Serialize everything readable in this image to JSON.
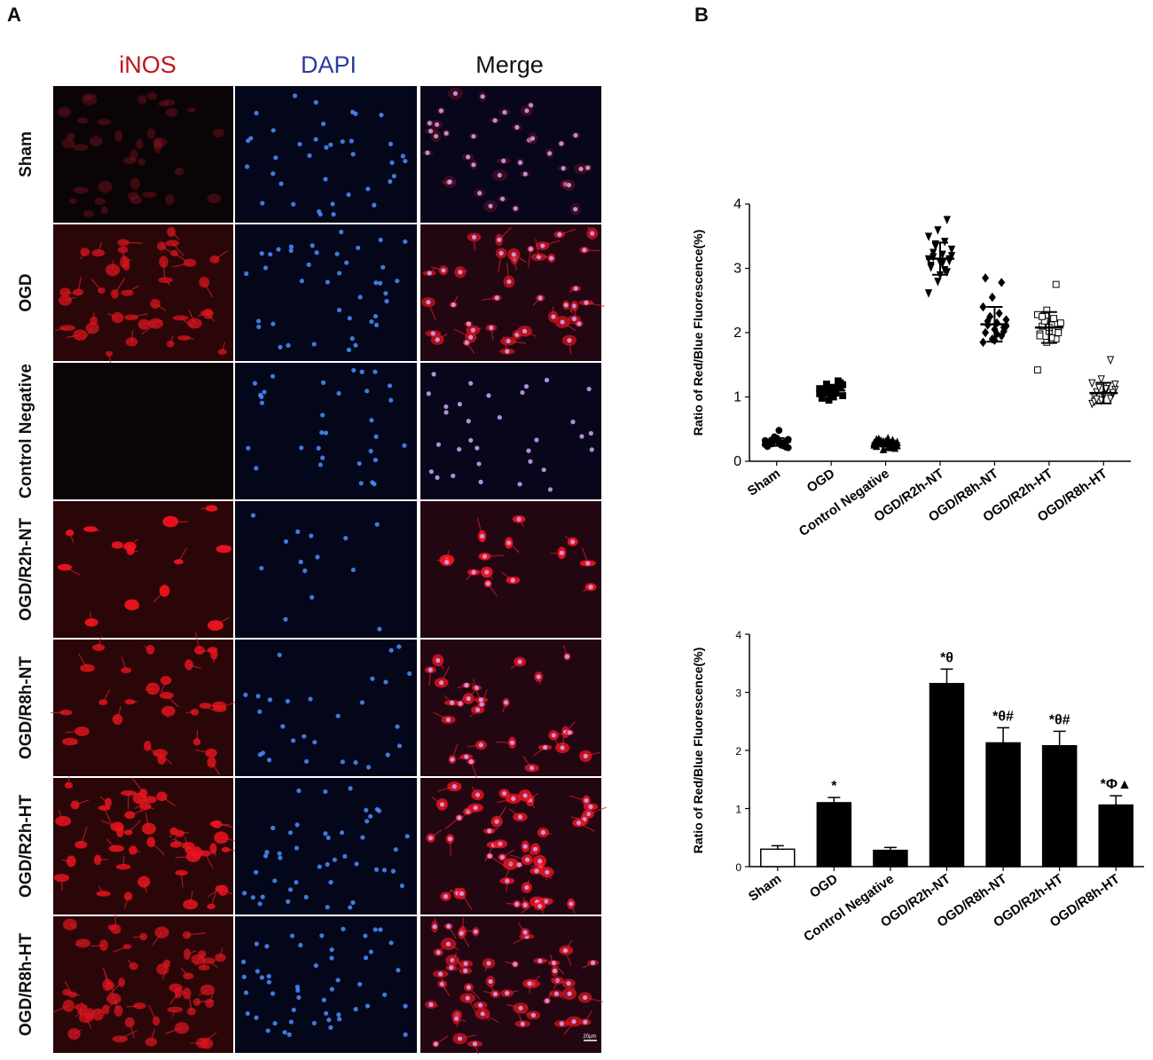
{
  "panelA": {
    "label": "A",
    "columns": [
      {
        "label": "iNOS",
        "color": "#c0141c"
      },
      {
        "label": "DAPI",
        "color": "#2a3c9e"
      },
      {
        "label": "Merge",
        "color": "#111111"
      }
    ],
    "rows": [
      "Sham",
      "OGD",
      "Control Negative",
      "OGD/R2h-NT",
      "OGD/R8h-NT",
      "OGD/R2h-HT",
      "OGD/R8h-HT"
    ],
    "scale_bar": "20μm"
  },
  "panelB": {
    "label": "B"
  },
  "chart_data": [
    {
      "type": "scatter",
      "ylabel": "Ratio of Red/Blue Fluorescence(%)",
      "ylim": [
        0,
        4
      ],
      "yticks": [
        "0",
        "1",
        "2",
        "3",
        "4"
      ],
      "categories": [
        "Sham",
        "OGD",
        "Control Negative",
        "OGD/R2h-NT",
        "OGD/R8h-NT",
        "OGD/R2h-HT",
        "OGD/R8h-HT"
      ],
      "markers": [
        "circle",
        "square",
        "triangle-up",
        "triangle-down",
        "diamond",
        "open-square",
        "open-triangle-down"
      ],
      "mean": [
        0.3,
        1.1,
        0.28,
        3.15,
        2.13,
        2.08,
        1.06
      ],
      "sd": [
        0.06,
        0.08,
        0.05,
        0.25,
        0.27,
        0.24,
        0.16
      ],
      "points": [
        [
          0.26,
          0.33,
          0.24,
          0.3,
          0.36,
          0.22,
          0.28,
          0.31,
          0.34,
          0.27,
          0.25,
          0.32,
          0.38,
          0.29,
          0.23,
          0.35,
          0.3,
          0.27,
          0.48,
          0.21,
          0.33,
          0.26
        ],
        [
          1.05,
          1.12,
          1.18,
          0.98,
          1.1,
          1.22,
          1.08,
          1.15,
          1.02,
          1.2,
          1.07,
          1.13,
          0.95,
          1.25,
          1.1,
          1.04,
          1.16,
          1.09,
          1.0,
          1.19,
          1.11,
          1.06
        ],
        [
          0.25,
          0.3,
          0.22,
          0.33,
          0.27,
          0.2,
          0.29,
          0.35,
          0.24,
          0.31,
          0.26,
          0.28,
          0.18,
          0.32,
          0.23,
          0.3,
          0.27,
          0.34,
          0.21,
          0.29
        ],
        [
          2.62,
          2.8,
          2.95,
          3.02,
          3.1,
          3.15,
          3.18,
          3.22,
          3.3,
          3.35,
          3.42,
          3.5,
          3.6,
          3.76,
          3.05,
          2.9,
          3.12,
          3.25,
          3.08,
          3.2,
          3.38,
          2.98,
          3.15
        ],
        [
          1.85,
          1.9,
          1.95,
          2.0,
          2.05,
          2.08,
          2.12,
          2.15,
          2.2,
          2.25,
          2.3,
          2.4,
          2.55,
          2.78,
          2.85,
          1.88,
          2.02,
          2.18,
          1.98,
          2.1
        ],
        [
          1.42,
          1.85,
          1.9,
          1.98,
          2.02,
          2.05,
          2.1,
          2.12,
          2.15,
          2.18,
          2.22,
          2.28,
          2.35,
          2.75,
          1.95,
          2.08,
          2.0,
          2.25,
          1.92
        ],
        [
          0.9,
          0.95,
          0.98,
          1.0,
          1.02,
          1.05,
          1.08,
          1.1,
          1.12,
          1.15,
          1.18,
          1.22,
          1.28,
          1.58,
          0.93,
          1.03,
          1.07,
          0.97,
          1.13,
          1.2
        ]
      ]
    },
    {
      "type": "bar",
      "ylabel": "Ratio of Red/Blue Fluorescence(%)",
      "ylim": [
        0,
        4
      ],
      "yticks": [
        "0",
        "1",
        "2",
        "3",
        "4"
      ],
      "categories": [
        "Sham",
        "OGD",
        "Control Negative",
        "OGD/R2h-NT",
        "OGD/R8h-NT",
        "OGD/R2h-HT",
        "OGD/R8h-HT"
      ],
      "values": [
        0.3,
        1.1,
        0.28,
        3.15,
        2.13,
        2.08,
        1.06
      ],
      "errors": [
        0.06,
        0.09,
        0.05,
        0.25,
        0.26,
        0.25,
        0.16
      ],
      "fills": [
        "#ffffff",
        "#000000",
        "#000000",
        "#000000",
        "#000000",
        "#000000",
        "#000000"
      ],
      "annotations": [
        "",
        "*",
        "",
        "*θ",
        "*θ#",
        "*θ#",
        "*Φ▲"
      ]
    }
  ]
}
